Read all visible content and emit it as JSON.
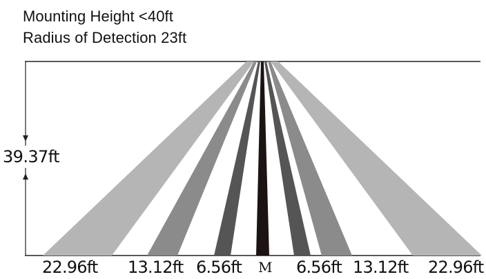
{
  "title": {
    "line1": "Mounting Height <40ft",
    "line2": "Radius of Detection 23ft"
  },
  "height_label": "39.37ft",
  "ground_labels": {
    "left_outer": "22.96ft",
    "left_mid": "13.12ft",
    "left_inner": "6.56ft",
    "center": "M",
    "right_inner": "6.56ft",
    "right_mid": "13.12ft",
    "right_outer": "22.96ft"
  },
  "colors": {
    "outer_beam": "#b5b5b5",
    "mid_beam": "#8b8b8b",
    "inner_beam": "#555555",
    "center_beam": "#1c1412",
    "line": "#222222"
  },
  "icons": {
    "arrow_down": "arrow-down-icon",
    "arrow_up": "arrow-up-icon"
  }
}
